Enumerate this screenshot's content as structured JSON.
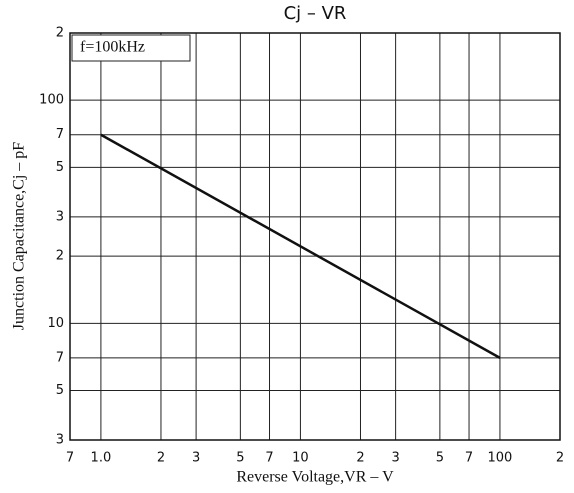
{
  "chart_data": {
    "type": "line",
    "title": "Cj – VR",
    "xlabel": "Reverse Voltage,VR – V",
    "ylabel": "Junction Capacitance,Cj – pF",
    "annotation": "f=100kHz",
    "xscale": "log",
    "yscale": "log",
    "grid": true,
    "xlim": [
      0.7,
      200
    ],
    "ylim": [
      3,
      200
    ],
    "xticks": [
      {
        "value": 0.7,
        "label": "7"
      },
      {
        "value": 1,
        "label": "1.0"
      },
      2,
      3,
      5,
      7,
      10,
      {
        "value": 20,
        "label": "2"
      },
      {
        "value": 30,
        "label": "3"
      },
      {
        "value": 50,
        "label": "5"
      },
      {
        "value": 70,
        "label": "7"
      },
      100,
      {
        "value": 200,
        "label": "2"
      }
    ],
    "yticks": [
      3,
      5,
      7,
      10,
      {
        "value": 20,
        "label": "2"
      },
      {
        "value": 30,
        "label": "3"
      },
      {
        "value": 50,
        "label": "5"
      },
      {
        "value": 70,
        "label": "7"
      },
      100,
      {
        "value": 200,
        "label": "2"
      }
    ],
    "x": [
      1,
      100
    ],
    "series": [
      {
        "name": "Cj",
        "color": "#111111",
        "values": [
          70,
          7
        ]
      }
    ]
  }
}
